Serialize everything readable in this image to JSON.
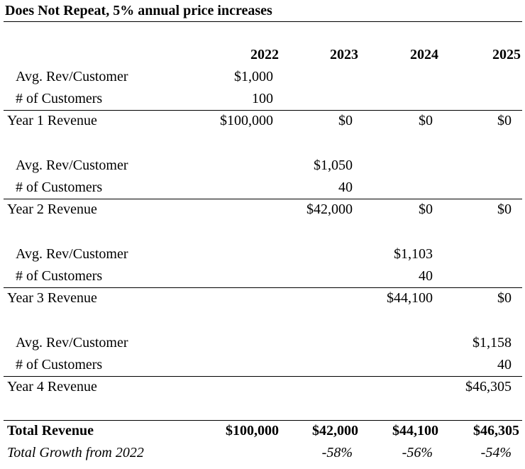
{
  "title": "Does Not Repeat, 5% annual price increases",
  "years": [
    "2022",
    "2023",
    "2024",
    "2025"
  ],
  "groups": [
    {
      "avg_label": "Avg. Rev/Customer",
      "avg_value": "$1,000",
      "cust_label": "# of Customers",
      "cust_value": "100",
      "rev_label": "Year 1 Revenue",
      "rev_values": [
        "$100,000",
        "$0",
        "$0",
        "$0"
      ]
    },
    {
      "avg_label": "Avg. Rev/Customer",
      "avg_value": "$1,050",
      "cust_label": "# of Customers",
      "cust_value": "40",
      "rev_label": "Year 2 Revenue",
      "rev_values": [
        "$42,000",
        "$0",
        "$0"
      ]
    },
    {
      "avg_label": "Avg. Rev/Customer",
      "avg_value": "$1,103",
      "cust_label": "# of Customers",
      "cust_value": "40",
      "rev_label": "Year 3 Revenue",
      "rev_values": [
        "$44,100",
        "$0"
      ]
    },
    {
      "avg_label": "Avg. Rev/Customer",
      "avg_value": "$1,158",
      "cust_label": "# of Customers",
      "cust_value": "40",
      "rev_label": "Year 4 Revenue",
      "rev_values": [
        "$46,305"
      ]
    }
  ],
  "total": {
    "label": "Total Revenue",
    "values": [
      "$100,000",
      "$42,000",
      "$44,100",
      "$46,305"
    ]
  },
  "growth": {
    "label": "Total Growth from 2022",
    "values": [
      "-58%",
      "-56%",
      "-54%"
    ]
  }
}
